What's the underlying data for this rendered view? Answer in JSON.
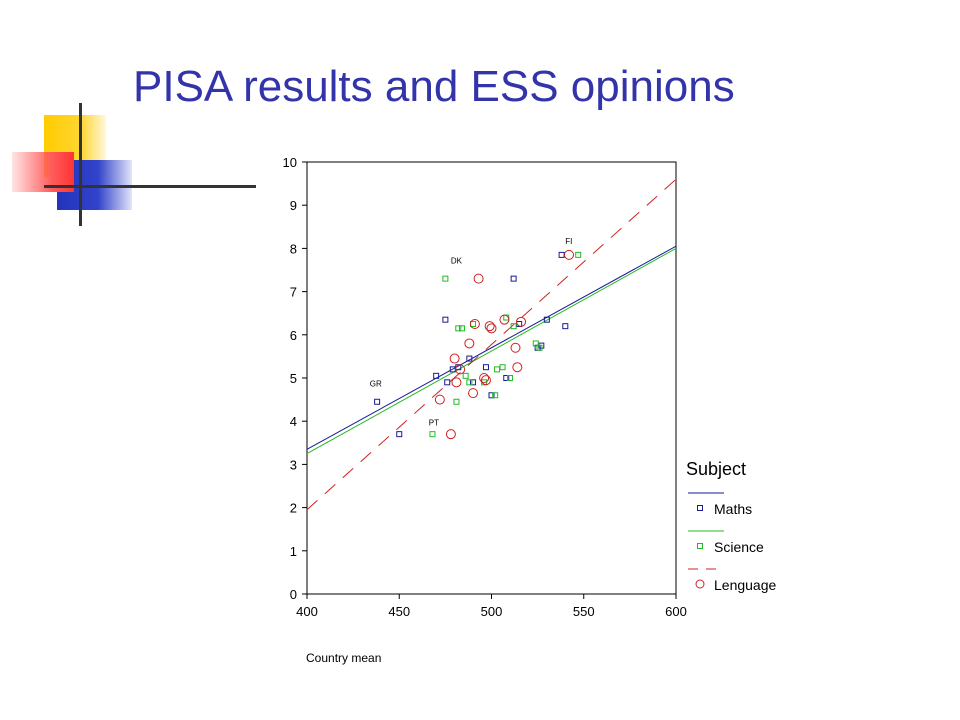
{
  "slide": {
    "title": "PISA results and ESS opinions"
  },
  "colors": {
    "title": "#3333aa",
    "maths": "#1a1a99",
    "science": "#22bb22",
    "lenguage": "#cc2222"
  },
  "chart_data": {
    "type": "scatter",
    "xlabel": "Country mean",
    "ylabel": "",
    "xlim": [
      400,
      600
    ],
    "ylim": [
      0,
      10
    ],
    "x_ticks": [
      "400",
      "450",
      "500",
      "550",
      "600"
    ],
    "y_ticks": [
      "0",
      "1",
      "2",
      "3",
      "4",
      "5",
      "6",
      "7",
      "8",
      "9",
      "10"
    ],
    "legend": {
      "title": "Subject",
      "placement": "right"
    },
    "series": [
      {
        "name": "Maths",
        "color": "#1a1a99",
        "marker": "square",
        "points": [
          [
            438,
            4.45
          ],
          [
            450,
            3.7
          ],
          [
            470,
            5.05
          ],
          [
            475,
            6.35
          ],
          [
            476,
            4.9
          ],
          [
            479,
            5.2
          ],
          [
            482,
            5.25
          ],
          [
            488,
            5.45
          ],
          [
            490,
            4.9
          ],
          [
            497,
            5.25
          ],
          [
            500,
            4.6
          ],
          [
            508,
            5.0
          ],
          [
            512,
            7.3
          ],
          [
            515,
            6.25
          ],
          [
            525,
            5.7
          ],
          [
            527,
            5.75
          ],
          [
            530,
            6.35
          ],
          [
            538,
            7.85
          ],
          [
            540,
            6.2
          ]
        ],
        "fit": [
          [
            400,
            3.35
          ],
          [
            600,
            8.05
          ]
        ]
      },
      {
        "name": "Science",
        "color": "#22bb22",
        "marker": "square",
        "points": [
          [
            468,
            3.7
          ],
          [
            475,
            7.3
          ],
          [
            481,
            4.45
          ],
          [
            482,
            6.15
          ],
          [
            484,
            6.15
          ],
          [
            486,
            5.05
          ],
          [
            488,
            4.9
          ],
          [
            490,
            6.25
          ],
          [
            496,
            4.9
          ],
          [
            502,
            4.6
          ],
          [
            503,
            5.2
          ],
          [
            506,
            5.25
          ],
          [
            508,
            6.4
          ],
          [
            510,
            5.0
          ],
          [
            512,
            6.2
          ],
          [
            524,
            5.8
          ],
          [
            526,
            5.7
          ],
          [
            547,
            7.85
          ]
        ],
        "fit": [
          [
            400,
            3.25
          ],
          [
            600,
            8.0
          ]
        ]
      },
      {
        "name": "Lenguage",
        "color": "#cc2222",
        "marker": "circle",
        "points": [
          [
            472,
            4.5
          ],
          [
            478,
            3.7
          ],
          [
            480,
            5.45
          ],
          [
            481,
            4.9
          ],
          [
            483,
            5.2
          ],
          [
            488,
            5.8
          ],
          [
            490,
            4.65
          ],
          [
            491,
            6.25
          ],
          [
            493,
            7.3
          ],
          [
            496,
            5.0
          ],
          [
            497,
            4.95
          ],
          [
            499,
            6.2
          ],
          [
            500,
            6.15
          ],
          [
            507,
            6.35
          ],
          [
            513,
            5.7
          ],
          [
            514,
            5.25
          ],
          [
            516,
            6.3
          ],
          [
            542,
            7.85
          ]
        ],
        "fit": [
          [
            400,
            1.95
          ],
          [
            600,
            9.6
          ]
        ]
      }
    ],
    "annotations": [
      {
        "text": "GR",
        "x": 434,
        "y": 4.8
      },
      {
        "text": "PT",
        "x": 466,
        "y": 3.9
      },
      {
        "text": "DK",
        "x": 478,
        "y": 7.65
      },
      {
        "text": "FI",
        "x": 540,
        "y": 8.1
      }
    ]
  }
}
